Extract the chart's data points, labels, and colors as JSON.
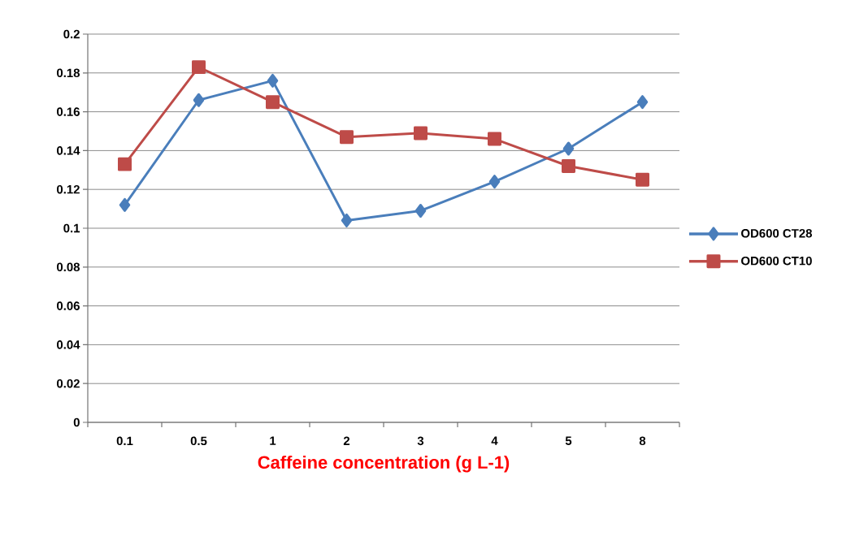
{
  "chart_data": {
    "type": "line",
    "xlabel": "Caffeine concentration (g L-1)",
    "categories": [
      "0.1",
      "0.5",
      "1",
      "2",
      "3",
      "4",
      "5",
      "8"
    ],
    "series": [
      {
        "name": "OD600  CT28",
        "color": "#4a7ebb",
        "marker": "diamond",
        "values": [
          0.112,
          0.166,
          0.176,
          0.104,
          0.109,
          0.124,
          0.141,
          0.165
        ]
      },
      {
        "name": "OD600  CT10",
        "color": "#be4b48",
        "marker": "square",
        "values": [
          0.133,
          0.183,
          0.165,
          0.147,
          0.149,
          0.146,
          0.132,
          0.125
        ]
      }
    ],
    "ylim": [
      0,
      0.2
    ],
    "yticks": [
      0,
      0.02,
      0.04,
      0.06,
      0.08,
      0.1,
      0.12,
      0.14,
      0.16,
      0.18,
      0.2
    ],
    "grid": "y",
    "legend": "right",
    "line_style": "solid"
  }
}
